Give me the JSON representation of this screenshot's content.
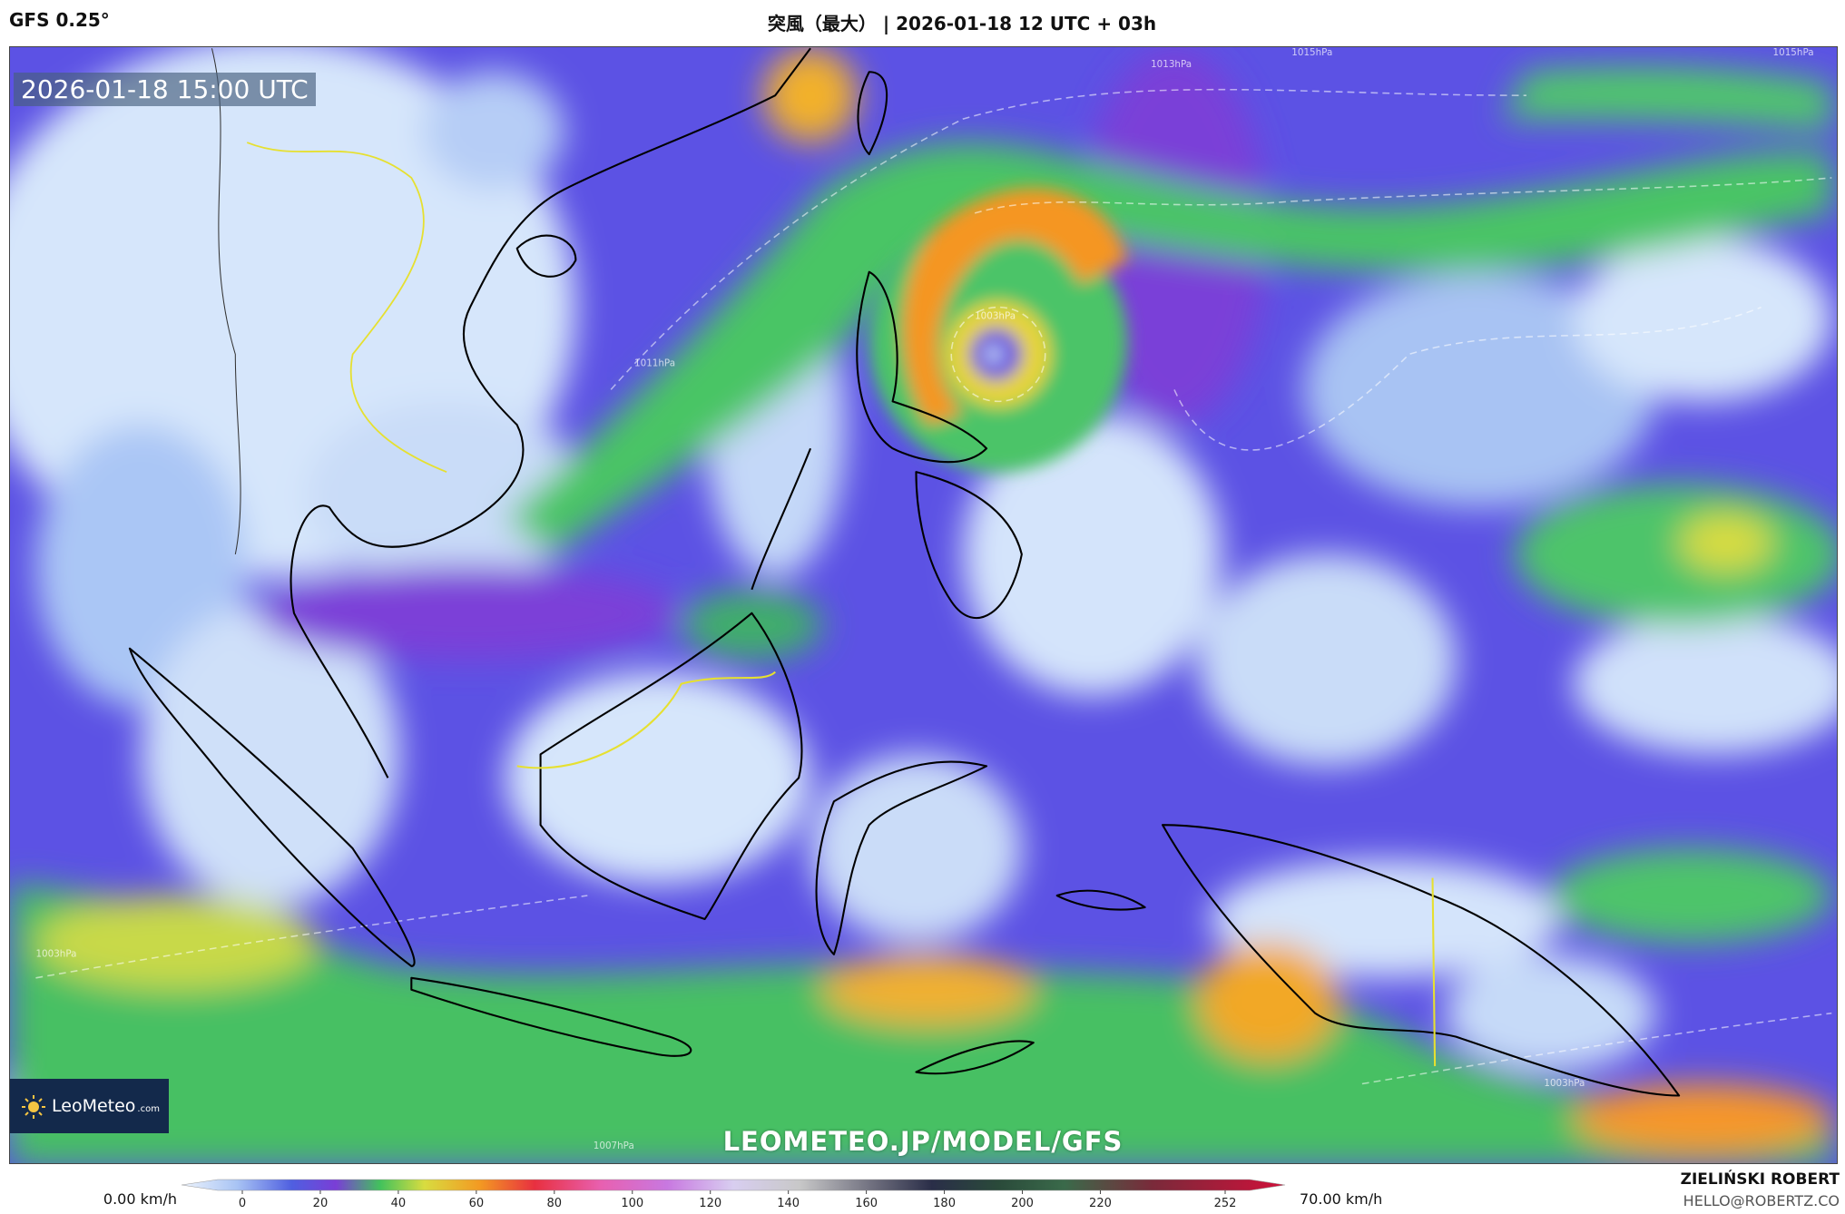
{
  "header": {
    "model": "GFS 0.25°",
    "title": "突風（最大） | 2026-01-18 12 UTC + 03h"
  },
  "map": {
    "valid_time": "2026-01-18 15:00 UTC",
    "watermark": "LEOMETEO.JP/MODEL/GFS",
    "logo": {
      "name": "LeoMeteo",
      "suffix": ".com"
    },
    "isobar_labels": [
      "1013hPa",
      "1015hPa",
      "1015hPa",
      "1003hPa",
      "1011hPa",
      "1003hPa",
      "1003hPa",
      "1007hPa"
    ]
  },
  "legend": {
    "min_label": "0.00 km/h",
    "max_label": "70.00 km/h",
    "ticks": [
      0,
      20,
      40,
      60,
      80,
      100,
      120,
      140,
      160,
      180,
      200,
      220,
      252
    ]
  },
  "credits": {
    "author": "ZIELIŃSKI ROBERT",
    "email": "HELLO@ROBERTZ.CO"
  }
}
